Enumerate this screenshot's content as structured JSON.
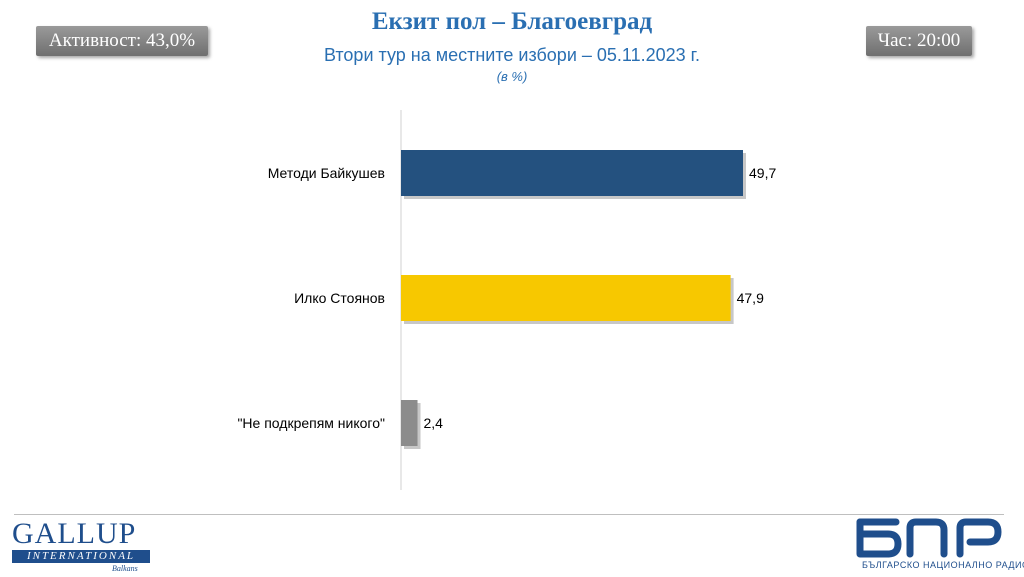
{
  "header": {
    "turnout": "Активност: 43,0%",
    "time": "Час: 20:00"
  },
  "chart_data": {
    "type": "bar",
    "orientation": "horizontal",
    "title": "Екзит пол – Благоевград",
    "subtitle": "Втори тур на местните избори – 05.11.2023 г.",
    "unit": "(в %)",
    "categories": [
      "Методи Байкушев",
      "Илко Стоянов",
      "\"Не подкрепям никого\""
    ],
    "values": [
      49.7,
      47.9,
      2.4
    ],
    "value_labels": [
      "49,7",
      "47,9",
      "2,4"
    ],
    "colors": [
      "#24517f",
      "#f7c800",
      "#8c8c8c"
    ],
    "xlim": [
      0,
      50
    ],
    "grid": false,
    "legend": "none"
  },
  "footer": {
    "left_logo": {
      "name": "gallup-logo",
      "word": "GALLUP",
      "band": "INTERNATIONAL",
      "sub": "Balkans"
    },
    "right_logo": {
      "name": "bnr-logo",
      "sub": "БЪЛГАРСКО НАЦИОНАЛНО РАДИО",
      "color": "#1f4e8c"
    }
  }
}
